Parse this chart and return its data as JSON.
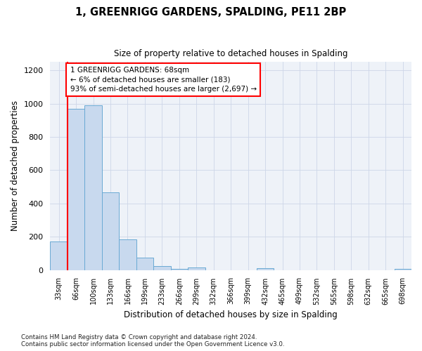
{
  "title": "1, GREENRIGG GARDENS, SPALDING, PE11 2BP",
  "subtitle": "Size of property relative to detached houses in Spalding",
  "xlabel": "Distribution of detached houses by size in Spalding",
  "ylabel": "Number of detached properties",
  "bar_color": "#c8d9ee",
  "bar_edge_color": "#6aaad4",
  "categories": [
    "33sqm",
    "66sqm",
    "100sqm",
    "133sqm",
    "166sqm",
    "199sqm",
    "233sqm",
    "266sqm",
    "299sqm",
    "332sqm",
    "366sqm",
    "399sqm",
    "432sqm",
    "465sqm",
    "499sqm",
    "532sqm",
    "565sqm",
    "598sqm",
    "632sqm",
    "665sqm",
    "698sqm"
  ],
  "values": [
    170,
    970,
    990,
    465,
    185,
    75,
    22,
    5,
    14,
    0,
    0,
    0,
    12,
    0,
    0,
    0,
    0,
    0,
    0,
    0,
    5
  ],
  "annotation_text": "1 GREENRIGG GARDENS: 68sqm\n← 6% of detached houses are smaller (183)\n93% of semi-detached houses are larger (2,697) →",
  "vline_x": 0.5,
  "ylim": [
    0,
    1250
  ],
  "yticks": [
    0,
    200,
    400,
    600,
    800,
    1000,
    1200
  ],
  "footer": "Contains HM Land Registry data © Crown copyright and database right 2024.\nContains public sector information licensed under the Open Government Licence v3.0.",
  "grid_color": "#cdd6e8",
  "background_color": "#eef2f8"
}
